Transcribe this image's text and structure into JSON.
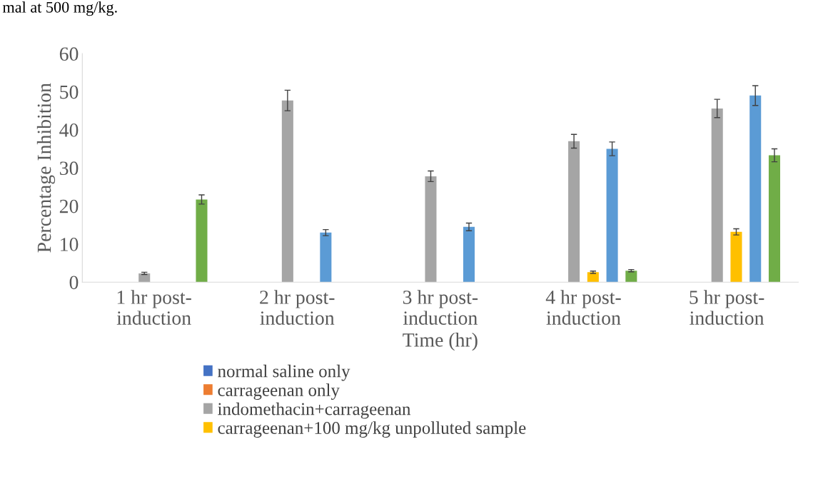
{
  "chart_data": {
    "type": "bar",
    "ylabel": "Percentage Inhibition",
    "xlabel": "Time (hr)",
    "annotations": [
      "mal at 500 mg/kg."
    ],
    "categories": [
      "1 hr post-\ninduction",
      "2 hr post-\ninduction",
      "3 hr post-\ninduction",
      "4 hr post-\ninduction",
      "5 hr post-\ninduction"
    ],
    "series": [
      {
        "name": "normal saline only",
        "color": "#4472c4",
        "values": [
          0,
          0,
          0,
          0,
          0
        ]
      },
      {
        "name": "carrageenan only",
        "color": "#ed7d31",
        "values": [
          0,
          0,
          0,
          0,
          0
        ]
      },
      {
        "name": "indomethacin+carrageenan",
        "color": "#a5a5a5",
        "values": [
          2.3,
          47.7,
          27.8,
          37,
          45.6
        ],
        "errors": [
          0.3,
          2.7,
          1.4,
          1.8,
          2.4
        ]
      },
      {
        "name": "carrageenan+100 mg/kg unpolluted sample",
        "color": "#ffc000",
        "values": [
          0,
          0,
          0,
          2.6,
          13.2
        ],
        "errors": [
          null,
          null,
          null,
          0.3,
          0.8
        ]
      },
      {
        "color": "#5b9bd5",
        "values": [
          0,
          13,
          14.5,
          35,
          49
        ],
        "errors": [
          null,
          0.8,
          1,
          1.8,
          2.6
        ]
      },
      {
        "color": "#70ad47",
        "values": [
          21.7,
          0,
          0,
          3,
          33.3
        ],
        "errors": [
          1.2,
          null,
          null,
          0.3,
          1.7
        ]
      }
    ],
    "ylim": [
      0,
      60
    ],
    "yticks": [
      0,
      10,
      20,
      30,
      40,
      50,
      60
    ],
    "grid": false,
    "legend": "bottom"
  }
}
